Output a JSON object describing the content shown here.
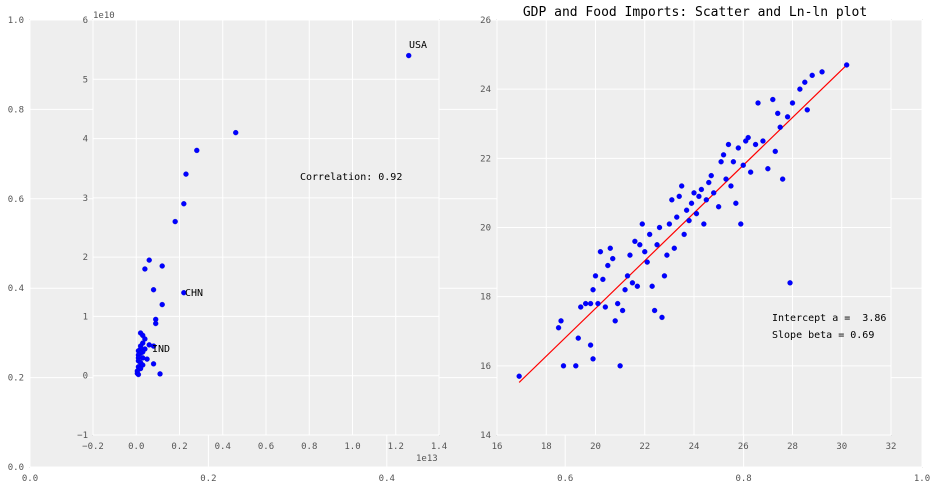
{
  "colors": {
    "figure_bg": "#ffffff",
    "axes_bg": "#eeeeee",
    "grid": "#ffffff",
    "spine": "#bcbcbc",
    "tick_text": "#555555",
    "text": "#000000",
    "points": "#0000ff",
    "fit_line": "#ff0000"
  },
  "figure_axis": {
    "x_ticks": [
      "0.0",
      "0.2",
      "0.4",
      "0.6",
      "0.8",
      "1.0"
    ],
    "y_ticks": [
      "0.0",
      "0.2",
      "0.4",
      "0.6",
      "0.8",
      "1.0"
    ]
  },
  "chart_data": [
    {
      "type": "scatter",
      "title": "",
      "xlabel": "",
      "ylabel": "",
      "x_offset_label": "1e13",
      "y_offset_label": "1e10",
      "xlim": [
        -0.2,
        1.4
      ],
      "ylim": [
        -1,
        6
      ],
      "x_ticks": [
        "−0.2",
        "0.0",
        "0.2",
        "0.4",
        "0.6",
        "0.8",
        "1.0",
        "1.2",
        "1.4"
      ],
      "y_ticks": [
        "−1",
        "0",
        "1",
        "2",
        "3",
        "4",
        "5",
        "6"
      ],
      "grid": true,
      "annotations": [
        "USA",
        "CHN",
        "IND",
        "Correlation: 0.92"
      ],
      "labeled_points": [
        {
          "label": "USA",
          "x": 1.26,
          "y": 5.4
        },
        {
          "label": "CHN",
          "x": 0.22,
          "y": 1.4
        },
        {
          "label": "IND",
          "x": 0.08,
          "y": 0.5
        }
      ],
      "points": [
        [
          1.26,
          5.4
        ],
        [
          0.46,
          4.1
        ],
        [
          0.28,
          3.8
        ],
        [
          0.23,
          3.4
        ],
        [
          0.22,
          2.9
        ],
        [
          0.18,
          2.6
        ],
        [
          0.06,
          1.95
        ],
        [
          0.12,
          1.85
        ],
        [
          0.04,
          1.8
        ],
        [
          0.08,
          1.45
        ],
        [
          0.22,
          1.4
        ],
        [
          0.12,
          1.2
        ],
        [
          0.09,
          0.95
        ],
        [
          0.09,
          0.88
        ],
        [
          0.02,
          0.72
        ],
        [
          0.03,
          0.68
        ],
        [
          0.04,
          0.62
        ],
        [
          0.03,
          0.55
        ],
        [
          0.06,
          0.52
        ],
        [
          0.02,
          0.5
        ],
        [
          0.08,
          0.5
        ],
        [
          0.04,
          0.45
        ],
        [
          0.02,
          0.45
        ],
        [
          0.01,
          0.42
        ],
        [
          0.03,
          0.4
        ],
        [
          0.05,
          0.28
        ],
        [
          0.02,
          0.38
        ],
        [
          0.01,
          0.35
        ],
        [
          0.03,
          0.3
        ],
        [
          0.08,
          0.2
        ],
        [
          0.01,
          0.3
        ],
        [
          0.01,
          0.25
        ],
        [
          0.02,
          0.22
        ],
        [
          0.03,
          0.18
        ],
        [
          0.01,
          0.15
        ],
        [
          0.02,
          0.12
        ],
        [
          0.11,
          0.03
        ],
        [
          0.005,
          0.08
        ],
        [
          0.005,
          0.04
        ],
        [
          0.01,
          0.02
        ]
      ]
    },
    {
      "type": "scatter",
      "title": "GDP and Food Imports: Scatter and Ln-ln plot",
      "xlabel": "",
      "ylabel": "",
      "xlim": [
        16,
        32
      ],
      "ylim": [
        14,
        26
      ],
      "x_ticks": [
        "16",
        "18",
        "20",
        "22",
        "24",
        "26",
        "28",
        "30",
        "32"
      ],
      "y_ticks": [
        "14",
        "16",
        "18",
        "20",
        "22",
        "24",
        "26"
      ],
      "grid": true,
      "annotations": [
        "Intercept a =  3.86",
        "Slope beta = 0.69"
      ],
      "fit_line": {
        "intercept": 3.86,
        "slope": 0.69,
        "x": [
          16.9,
          30.2
        ]
      },
      "points": [
        [
          16.9,
          15.7
        ],
        [
          18.5,
          17.1
        ],
        [
          18.6,
          17.3
        ],
        [
          18.7,
          16.0
        ],
        [
          19.2,
          16.0
        ],
        [
          19.3,
          16.8
        ],
        [
          19.4,
          17.7
        ],
        [
          19.6,
          17.8
        ],
        [
          19.8,
          16.6
        ],
        [
          19.9,
          16.2
        ],
        [
          19.8,
          17.8
        ],
        [
          19.9,
          18.2
        ],
        [
          20.0,
          18.6
        ],
        [
          20.1,
          17.8
        ],
        [
          20.2,
          19.3
        ],
        [
          20.3,
          18.5
        ],
        [
          20.4,
          17.7
        ],
        [
          20.5,
          18.9
        ],
        [
          20.6,
          19.4
        ],
        [
          20.7,
          19.1
        ],
        [
          20.8,
          17.3
        ],
        [
          20.9,
          17.8
        ],
        [
          21.0,
          16.0
        ],
        [
          21.1,
          17.6
        ],
        [
          21.2,
          18.2
        ],
        [
          21.3,
          18.6
        ],
        [
          21.4,
          19.2
        ],
        [
          21.5,
          18.4
        ],
        [
          21.6,
          19.6
        ],
        [
          21.7,
          18.3
        ],
        [
          21.8,
          19.5
        ],
        [
          21.9,
          20.1
        ],
        [
          22.0,
          19.3
        ],
        [
          22.1,
          19.0
        ],
        [
          22.2,
          19.8
        ],
        [
          22.3,
          18.3
        ],
        [
          22.4,
          17.6
        ],
        [
          22.5,
          19.5
        ],
        [
          22.6,
          20.0
        ],
        [
          22.7,
          17.4
        ],
        [
          22.8,
          18.6
        ],
        [
          22.9,
          19.2
        ],
        [
          23.0,
          20.1
        ],
        [
          23.1,
          20.8
        ],
        [
          23.2,
          19.4
        ],
        [
          23.3,
          20.3
        ],
        [
          23.4,
          20.9
        ],
        [
          23.5,
          21.2
        ],
        [
          23.6,
          19.8
        ],
        [
          23.7,
          20.5
        ],
        [
          23.8,
          20.2
        ],
        [
          23.9,
          20.7
        ],
        [
          24.0,
          21.0
        ],
        [
          24.1,
          20.4
        ],
        [
          24.2,
          20.9
        ],
        [
          24.3,
          21.1
        ],
        [
          24.4,
          20.1
        ],
        [
          24.5,
          20.8
        ],
        [
          24.6,
          21.3
        ],
        [
          24.7,
          21.5
        ],
        [
          24.8,
          21.0
        ],
        [
          25.0,
          20.6
        ],
        [
          25.1,
          21.9
        ],
        [
          25.2,
          22.1
        ],
        [
          25.3,
          21.4
        ],
        [
          25.4,
          22.4
        ],
        [
          25.5,
          21.2
        ],
        [
          25.6,
          21.9
        ],
        [
          25.7,
          20.7
        ],
        [
          25.8,
          22.3
        ],
        [
          25.9,
          20.1
        ],
        [
          26.0,
          21.8
        ],
        [
          26.1,
          22.5
        ],
        [
          26.2,
          22.6
        ],
        [
          26.3,
          21.6
        ],
        [
          26.5,
          22.4
        ],
        [
          26.6,
          23.6
        ],
        [
          26.8,
          22.5
        ],
        [
          27.0,
          21.7
        ],
        [
          27.2,
          23.7
        ],
        [
          27.3,
          22.2
        ],
        [
          27.4,
          23.3
        ],
        [
          27.5,
          22.9
        ],
        [
          27.6,
          21.4
        ],
        [
          27.8,
          23.2
        ],
        [
          27.9,
          18.4
        ],
        [
          28.0,
          23.6
        ],
        [
          28.3,
          24.0
        ],
        [
          28.5,
          24.2
        ],
        [
          28.6,
          23.4
        ],
        [
          28.8,
          24.4
        ],
        [
          29.2,
          24.5
        ],
        [
          30.2,
          24.7
        ]
      ]
    }
  ]
}
